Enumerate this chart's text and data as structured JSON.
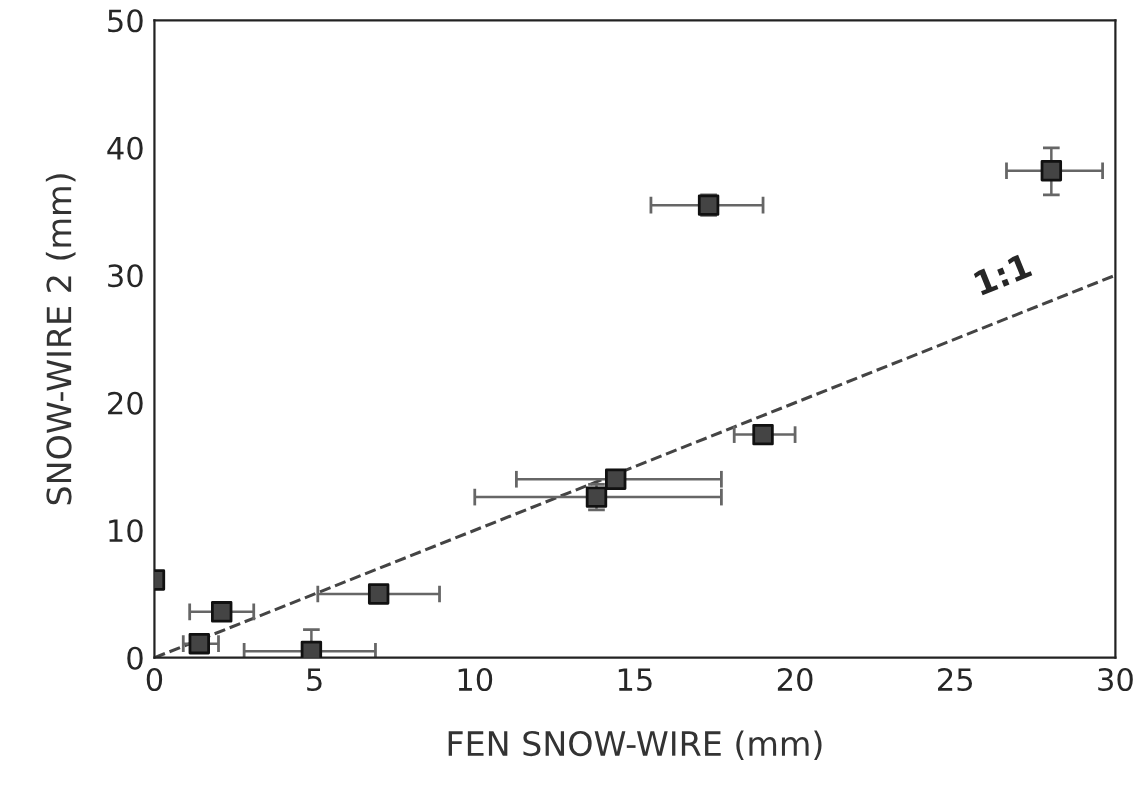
{
  "chart_data": {
    "type": "scatter",
    "xlabel": "FEN SNOW-WIRE (mm)",
    "ylabel": "SNOW-WIRE 2 (mm)",
    "xlim": [
      0,
      30
    ],
    "ylim": [
      0,
      50
    ],
    "xticks": [
      0,
      5,
      10,
      15,
      20,
      25,
      30
    ],
    "yticks": [
      0,
      10,
      20,
      30,
      40,
      50
    ],
    "grid": false,
    "marker": "square",
    "series": [
      {
        "color": "#444444",
        "x": [
          0,
          1.4,
          2.1,
          4.9,
          7.0,
          13.8,
          14.4,
          19.0,
          17.3,
          28.0
        ],
        "values": [
          6.1,
          1.1,
          3.6,
          0.5,
          5.0,
          12.6,
          14.0,
          17.5,
          35.5,
          38.2
        ],
        "errors": [
          null,
          null,
          null,
          [
            0,
            2.2
          ],
          null,
          [
            11.6,
            13.6
          ],
          [
            13.3,
            14.7
          ],
          null,
          [
            34.7,
            36.3
          ],
          [
            36.3,
            40.0
          ]
        ],
        "xerrors": [
          null,
          [
            0.9,
            2.0
          ],
          [
            1.1,
            3.1
          ],
          [
            2.8,
            6.9
          ],
          [
            5.1,
            8.9
          ],
          [
            10.0,
            17.7
          ],
          [
            11.3,
            17.7
          ],
          [
            18.1,
            20.0
          ],
          [
            15.5,
            19.0
          ],
          [
            26.6,
            29.6
          ]
        ]
      },
      {
        "type": "line",
        "color": "#444444",
        "line_style": "dashed",
        "marker": "none",
        "x": [
          0,
          30
        ],
        "values": [
          0,
          30
        ]
      }
    ],
    "annotations": [
      {
        "text": "1:1",
        "x": 26.5,
        "y": 26.5
      }
    ]
  }
}
